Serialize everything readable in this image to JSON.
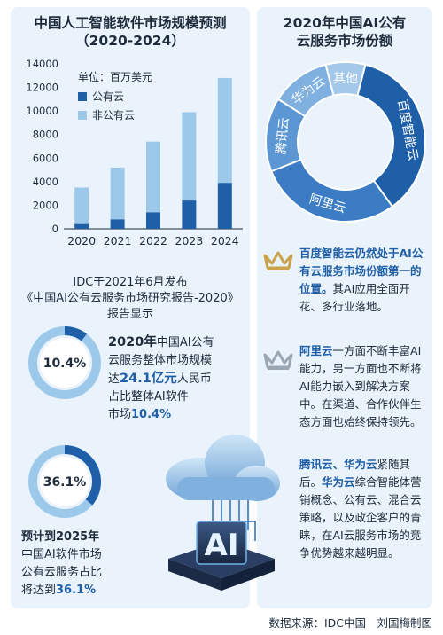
{
  "left": {
    "title_line1": "中国人工智能软件市场规模预测",
    "title_line2": "（2020-2024）",
    "unit": "单位：百万美元",
    "legend_public": "公有云",
    "legend_nonpublic": "非公有云",
    "report_line1": "IDC于2021年6月发布",
    "report_line2": "《中国AI公有云服务市场研究报告-2020》",
    "report_line3": "报告显示",
    "ring1_value": "10.4%",
    "stat1_l1a": "2020年",
    "stat1_l1b": "中国AI公有",
    "stat1_l2": "云服务整体市场规模",
    "stat1_l3a": "达",
    "stat1_l3b": "24.1亿元",
    "stat1_l3c": "人民币",
    "stat1_l4": "占比整体AI软件",
    "stat1_l5a": "市场",
    "stat1_l5b": "10.4%",
    "ring2_value": "36.1%",
    "stat2_l1": "预计到2025年",
    "stat2_l2": "中国AI软件市场",
    "stat2_l3": "公有云服务占比",
    "stat2_l4a": "将达到",
    "stat2_l4b": "36.1%",
    "cloud_label": "AI"
  },
  "right": {
    "title_line1": "2020年中国AI公有",
    "title_line2": "云服务市场份额",
    "p1_blue": "百度智能云仍然处于AI公有云服务市场份额第一的位置。",
    "p1_rest": "其AI应用全面开花、多行业落地。",
    "p2_blue": "阿里云",
    "p2_rest": "一方面不断丰富AI能力，另一方面也不断将AI能力嵌入到解决方案中。在渠道、合作伙伴生态方面也始终保持领先。",
    "p3_blue1": "腾讯云、华为云",
    "p3_mid": "紧随其后。",
    "p3_blue2": "华为云",
    "p3_rest": "综合智能体营销概念、公有云、混合云策略，以及政企客户的青睐，在AI云服务市场的竞争优势越来越明显。"
  },
  "source": "数据来源：IDC中国　刘国梅制图",
  "colors": {
    "public": "#1f5fa8",
    "nonpublic": "#9cc9ea",
    "panel": "#eaf3fb",
    "crown_gold": "#c9a24a",
    "crown_gray": "#9aa6b2"
  },
  "chart_data": [
    {
      "type": "bar",
      "stacked": true,
      "title": "中国人工智能软件市场规模预测（2020-2024）",
      "unit": "百万美元",
      "categories": [
        "2020",
        "2021",
        "2022",
        "2023",
        "2024"
      ],
      "ylim": [
        0,
        14000
      ],
      "yticks": [
        0,
        2000,
        4000,
        6000,
        8000,
        10000,
        12000,
        14000
      ],
      "series": [
        {
          "name": "公有云",
          "values": [
            400,
            800,
            1400,
            2400,
            3900
          ]
        },
        {
          "name": "非公有云",
          "values": [
            3100,
            4400,
            6000,
            7500,
            8900
          ]
        }
      ]
    },
    {
      "type": "pie",
      "donut": true,
      "title": "2020年中国AI公有云服务市场份额",
      "labels": [
        "百度智能云",
        "阿里云",
        "腾讯云",
        "华为云",
        "其他"
      ],
      "values": [
        36,
        29,
        15,
        12,
        8
      ]
    }
  ]
}
